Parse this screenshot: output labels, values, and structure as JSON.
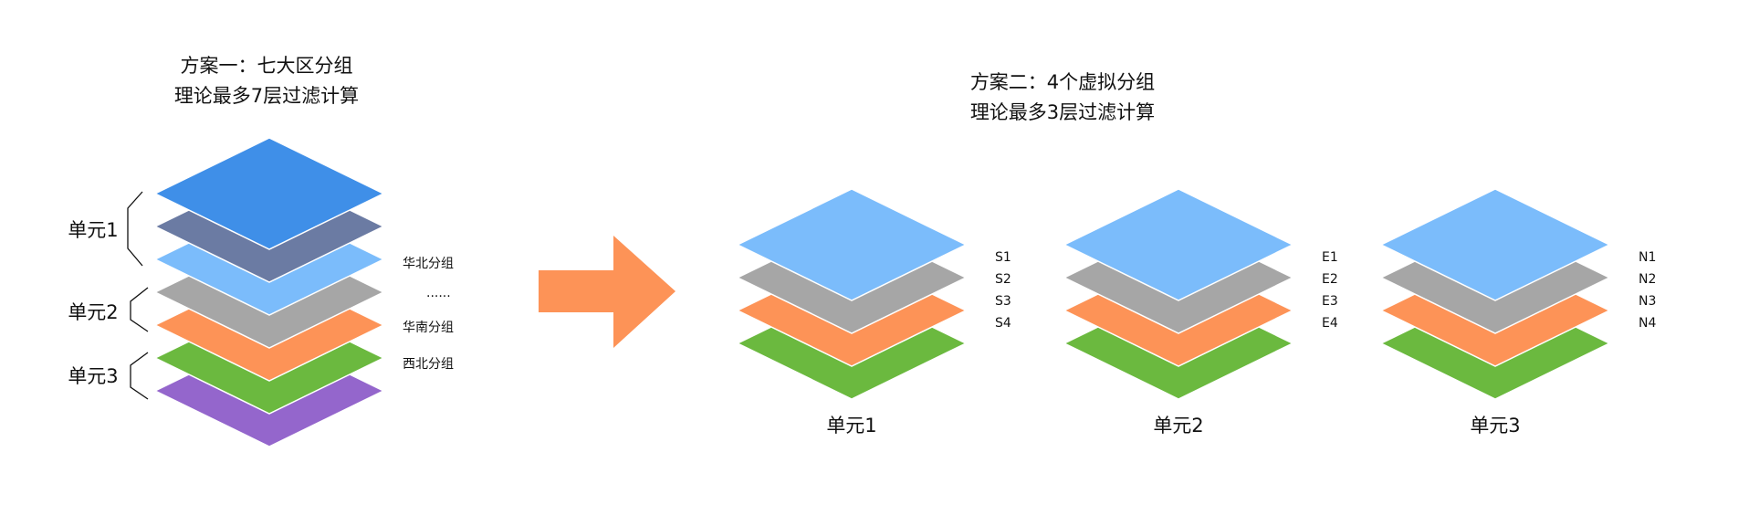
{
  "colors": {
    "blue": "#3f8fe8",
    "slate": "#6b7ba3",
    "light_blue": "#7bbcfb",
    "gray": "#a6a6a6",
    "orange": "#fd9357",
    "green": "#6bb93f",
    "purple": "#9466cc",
    "arrow": "#fd9357"
  },
  "scheme1": {
    "title_line1": "方案一：七大区分组",
    "title_line2": "理论最多7层过滤计算",
    "layers": [
      "blue",
      "slate",
      "light_blue",
      "gray",
      "orange",
      "green",
      "purple"
    ],
    "units": [
      "单元1",
      "单元2",
      "单元3"
    ],
    "side_labels": [
      "华北分组",
      "......",
      "华南分组",
      "西北分组"
    ]
  },
  "scheme2": {
    "title_line1": "方案二：4个虚拟分组",
    "title_line2": "理论最多3层过滤计算",
    "layers": [
      "light_blue",
      "gray",
      "orange",
      "green"
    ],
    "stacks": [
      {
        "unit": "单元1",
        "labels": [
          "S1",
          "S2",
          "S3",
          "S4"
        ]
      },
      {
        "unit": "单元2",
        "labels": [
          "E1",
          "E2",
          "E3",
          "E4"
        ]
      },
      {
        "unit": "单元3",
        "labels": [
          "N1",
          "N2",
          "N3",
          "N4"
        ]
      }
    ]
  }
}
